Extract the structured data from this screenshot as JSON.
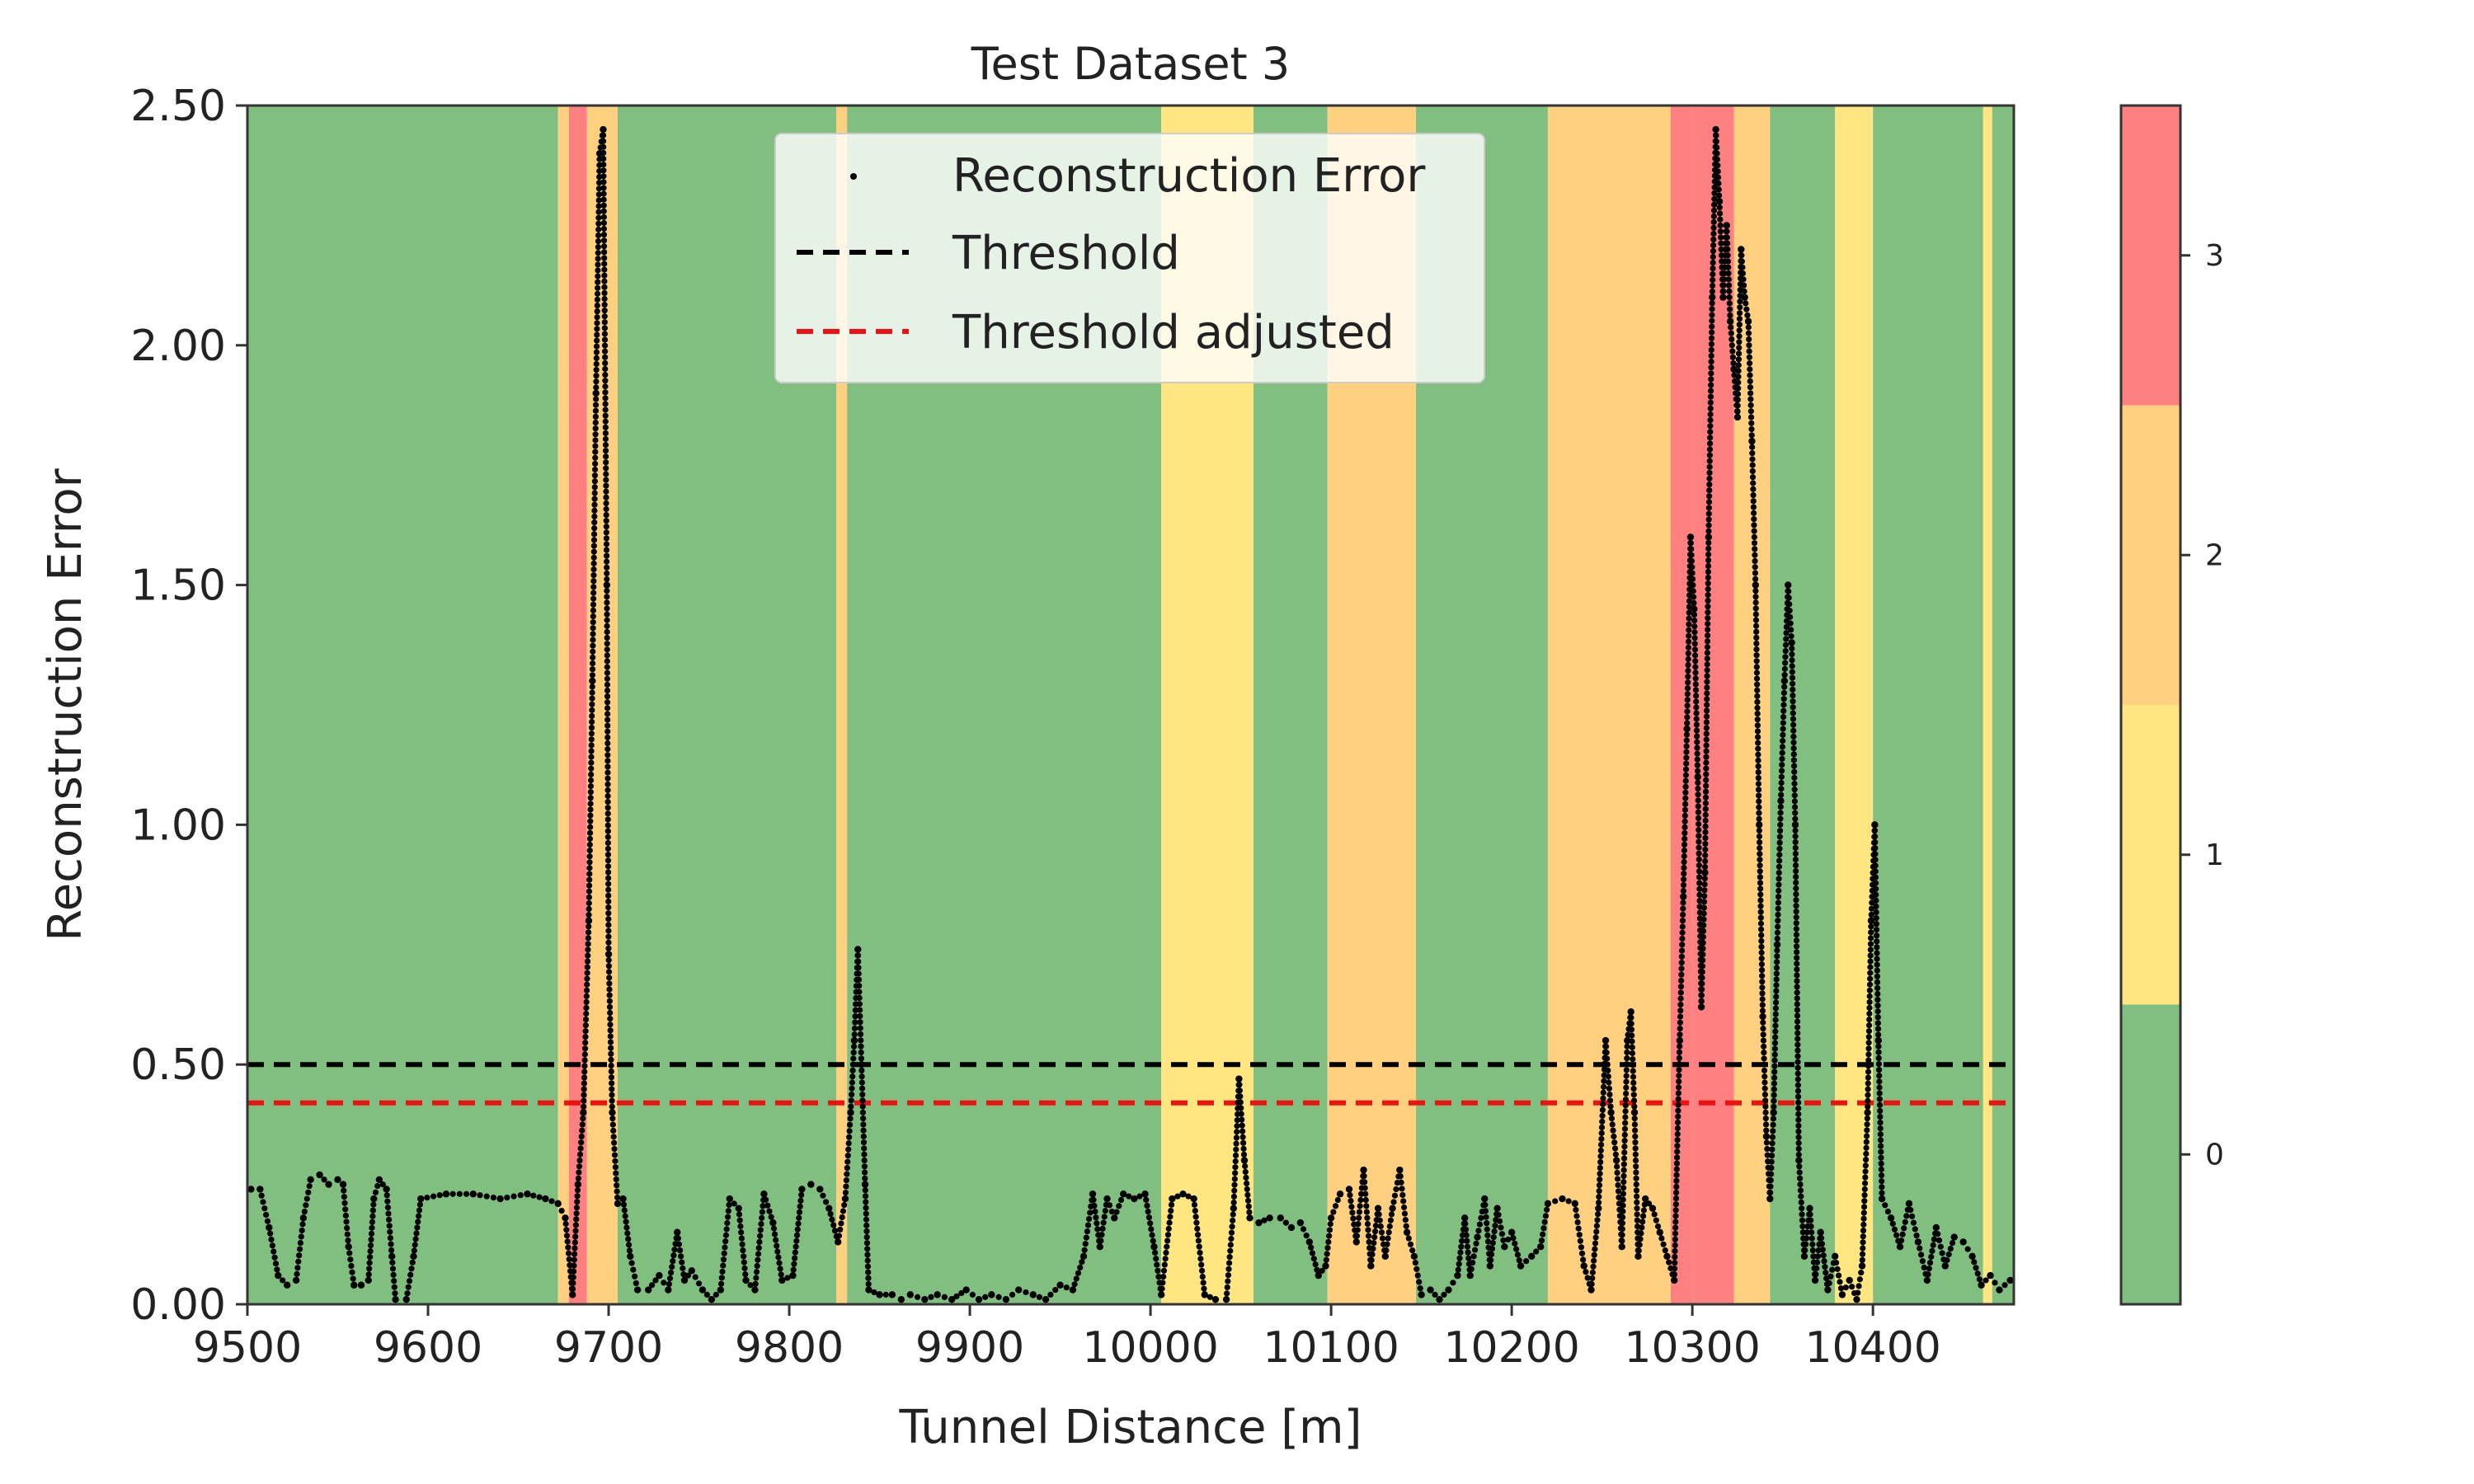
{
  "chart_data": {
    "type": "scatter",
    "title": "Test Dataset 3",
    "xlabel": "Tunnel Distance [m]",
    "ylabel": "Reconstruction Error",
    "xlim": [
      9500,
      10478
    ],
    "ylim": [
      0,
      2.5
    ],
    "x_ticks": [
      9500,
      9600,
      9700,
      9800,
      9900,
      10000,
      10100,
      10200,
      10300,
      10400
    ],
    "x_tick_labels": [
      "9500",
      "9600",
      "9700",
      "9800",
      "9900",
      "10000",
      "10100",
      "10200",
      "10300",
      "10400"
    ],
    "y_ticks": [
      0,
      0.5,
      1,
      1.5,
      2,
      2.5
    ],
    "y_tick_labels": [
      "0.00",
      "0.50",
      "1.00",
      "1.50",
      "2.00",
      "2.50"
    ],
    "grid": false,
    "legend_position": "top-center",
    "legend": [
      {
        "label": "Reconstruction Error",
        "kind": "marker",
        "color": "#000000"
      },
      {
        "label": "Threshold",
        "kind": "dashed-line",
        "color": "#000000"
      },
      {
        "label": "Threshold adjusted",
        "kind": "dashed-line",
        "color": "#ee1111"
      }
    ],
    "thresholds": [
      {
        "name": "Threshold",
        "value": 0.5,
        "color": "#000000"
      },
      {
        "name": "Threshold adjusted",
        "value": 0.42,
        "color": "#ee1111"
      }
    ],
    "class_colors": {
      "0": "#80bf80",
      "1": "#ffe680",
      "2": "#ffd080",
      "3": "#ff8080"
    },
    "class_bands": [
      {
        "from": 9500,
        "to": 9672,
        "class": 0
      },
      {
        "from": 9672,
        "to": 9678,
        "class": 2
      },
      {
        "from": 9678,
        "to": 9688,
        "class": 3
      },
      {
        "from": 9688,
        "to": 9705,
        "class": 2
      },
      {
        "from": 9705,
        "to": 9826,
        "class": 0
      },
      {
        "from": 9826,
        "to": 9832,
        "class": 2
      },
      {
        "from": 9832,
        "to": 10006,
        "class": 0
      },
      {
        "from": 10006,
        "to": 10057,
        "class": 1
      },
      {
        "from": 10057,
        "to": 10098,
        "class": 0
      },
      {
        "from": 10098,
        "to": 10147,
        "class": 2
      },
      {
        "from": 10147,
        "to": 10220,
        "class": 0
      },
      {
        "from": 10220,
        "to": 10288,
        "class": 2
      },
      {
        "from": 10288,
        "to": 10300,
        "class": 3
      },
      {
        "from": 10300,
        "to": 10323,
        "class": 3
      },
      {
        "from": 10323,
        "to": 10343,
        "class": 2
      },
      {
        "from": 10343,
        "to": 10379,
        "class": 0
      },
      {
        "from": 10379,
        "to": 10400,
        "class": 1
      },
      {
        "from": 10400,
        "to": 10461,
        "class": 0
      },
      {
        "from": 10461,
        "to": 10466,
        "class": 1
      },
      {
        "from": 10466,
        "to": 10478,
        "class": 0
      }
    ],
    "colorbar": {
      "ticks": [
        0,
        1,
        2,
        3
      ],
      "tick_labels": [
        "0",
        "1",
        "2",
        "3"
      ],
      "range": [
        -0.5,
        3.5
      ]
    },
    "series": [
      {
        "name": "Reconstruction Error",
        "points": [
          [
            9502,
            0.24
          ],
          [
            9507,
            0.24
          ],
          [
            9512,
            0.16
          ],
          [
            9517,
            0.06
          ],
          [
            9522,
            0.04
          ],
          [
            9527,
            0.05
          ],
          [
            9531,
            0.18
          ],
          [
            9535,
            0.26
          ],
          [
            9540,
            0.27
          ],
          [
            9545,
            0.25
          ],
          [
            9550,
            0.26
          ],
          [
            9553,
            0.25
          ],
          [
            9556,
            0.12
          ],
          [
            9559,
            0.04
          ],
          [
            9563,
            0.04
          ],
          [
            9567,
            0.05
          ],
          [
            9570,
            0.22
          ],
          [
            9573,
            0.26
          ],
          [
            9577,
            0.24
          ],
          [
            9580,
            0.1
          ],
          [
            9582,
            0.01
          ],
          [
            9588,
            0.01
          ],
          [
            9592,
            0.1
          ],
          [
            9596,
            0.22
          ],
          [
            9610,
            0.23
          ],
          [
            9625,
            0.23
          ],
          [
            9640,
            0.22
          ],
          [
            9655,
            0.23
          ],
          [
            9665,
            0.22
          ],
          [
            9672,
            0.21
          ],
          [
            9676,
            0.18
          ],
          [
            9680,
            0.02
          ],
          [
            9683,
            0.25
          ],
          [
            9686,
            0.4
          ],
          [
            9689,
            0.8
          ],
          [
            9691,
            1.3
          ],
          [
            9693,
            1.9
          ],
          [
            9695,
            2.4
          ],
          [
            9697,
            2.45
          ],
          [
            9699,
            1.5
          ],
          [
            9700,
            0.73
          ],
          [
            9702,
            0.4
          ],
          [
            9705,
            0.21
          ],
          [
            9708,
            0.22
          ],
          [
            9712,
            0.1
          ],
          [
            9716,
            0.03
          ],
          [
            9722,
            0.03
          ],
          [
            9728,
            0.06
          ],
          [
            9733,
            0.03
          ],
          [
            9738,
            0.15
          ],
          [
            9742,
            0.05
          ],
          [
            9746,
            0.07
          ],
          [
            9752,
            0.03
          ],
          [
            9757,
            0.01
          ],
          [
            9762,
            0.03
          ],
          [
            9767,
            0.22
          ],
          [
            9772,
            0.2
          ],
          [
            9776,
            0.05
          ],
          [
            9781,
            0.03
          ],
          [
            9786,
            0.23
          ],
          [
            9791,
            0.17
          ],
          [
            9796,
            0.05
          ],
          [
            9802,
            0.06
          ],
          [
            9807,
            0.24
          ],
          [
            9812,
            0.25
          ],
          [
            9817,
            0.24
          ],
          [
            9822,
            0.2
          ],
          [
            9827,
            0.13
          ],
          [
            9831,
            0.22
          ],
          [
            9834,
            0.4
          ],
          [
            9836,
            0.55
          ],
          [
            9838,
            0.74
          ],
          [
            9840,
            0.5
          ],
          [
            9842,
            0.25
          ],
          [
            9844,
            0.03
          ],
          [
            9850,
            0.02
          ],
          [
            9857,
            0.02
          ],
          [
            9862,
            0.01
          ],
          [
            9867,
            0.02
          ],
          [
            9875,
            0.01
          ],
          [
            9882,
            0.02
          ],
          [
            9890,
            0.01
          ],
          [
            9898,
            0.03
          ],
          [
            9905,
            0.01
          ],
          [
            9912,
            0.02
          ],
          [
            9920,
            0.01
          ],
          [
            9927,
            0.03
          ],
          [
            9935,
            0.02
          ],
          [
            9942,
            0.01
          ],
          [
            9950,
            0.04
          ],
          [
            9957,
            0.03
          ],
          [
            9963,
            0.1
          ],
          [
            9968,
            0.23
          ],
          [
            9972,
            0.12
          ],
          [
            9976,
            0.22
          ],
          [
            9980,
            0.18
          ],
          [
            9985,
            0.23
          ],
          [
            9991,
            0.22
          ],
          [
            9997,
            0.23
          ],
          [
            10002,
            0.12
          ],
          [
            10006,
            0.02
          ],
          [
            10012,
            0.22
          ],
          [
            10018,
            0.23
          ],
          [
            10024,
            0.22
          ],
          [
            10030,
            0.02
          ],
          [
            10036,
            0.01
          ],
          [
            10042,
            0.01
          ],
          [
            10046,
            0.2
          ],
          [
            10049,
            0.47
          ],
          [
            10052,
            0.3
          ],
          [
            10055,
            0.18
          ],
          [
            10060,
            0.17
          ],
          [
            10066,
            0.18
          ],
          [
            10072,
            0.18
          ],
          [
            10078,
            0.16
          ],
          [
            10083,
            0.17
          ],
          [
            10088,
            0.13
          ],
          [
            10093,
            0.06
          ],
          [
            10097,
            0.08
          ],
          [
            10100,
            0.18
          ],
          [
            10105,
            0.23
          ],
          [
            10110,
            0.24
          ],
          [
            10114,
            0.13
          ],
          [
            10118,
            0.28
          ],
          [
            10122,
            0.08
          ],
          [
            10126,
            0.2
          ],
          [
            10130,
            0.1
          ],
          [
            10134,
            0.2
          ],
          [
            10138,
            0.28
          ],
          [
            10142,
            0.15
          ],
          [
            10146,
            0.1
          ],
          [
            10150,
            0.02
          ],
          [
            10155,
            0.03
          ],
          [
            10160,
            0.01
          ],
          [
            10165,
            0.03
          ],
          [
            10170,
            0.06
          ],
          [
            10174,
            0.18
          ],
          [
            10177,
            0.06
          ],
          [
            10181,
            0.14
          ],
          [
            10185,
            0.22
          ],
          [
            10188,
            0.08
          ],
          [
            10192,
            0.2
          ],
          [
            10196,
            0.12
          ],
          [
            10200,
            0.15
          ],
          [
            10205,
            0.08
          ],
          [
            10211,
            0.1
          ],
          [
            10216,
            0.12
          ],
          [
            10220,
            0.21
          ],
          [
            10228,
            0.22
          ],
          [
            10235,
            0.21
          ],
          [
            10240,
            0.08
          ],
          [
            10244,
            0.03
          ],
          [
            10248,
            0.2
          ],
          [
            10252,
            0.55
          ],
          [
            10255,
            0.4
          ],
          [
            10258,
            0.3
          ],
          [
            10261,
            0.12
          ],
          [
            10264,
            0.55
          ],
          [
            10266,
            0.61
          ],
          [
            10268,
            0.4
          ],
          [
            10270,
            0.1
          ],
          [
            10274,
            0.22
          ],
          [
            10278,
            0.2
          ],
          [
            10282,
            0.15
          ],
          [
            10286,
            0.1
          ],
          [
            10290,
            0.05
          ],
          [
            10293,
            0.55
          ],
          [
            10295,
            0.85
          ],
          [
            10297,
            1.2
          ],
          [
            10299,
            1.6
          ],
          [
            10301,
            1.45
          ],
          [
            10303,
            1.1
          ],
          [
            10305,
            0.62
          ],
          [
            10307,
            0.9
          ],
          [
            10309,
            1.6
          ],
          [
            10311,
            2.1
          ],
          [
            10313,
            2.45
          ],
          [
            10315,
            2.3
          ],
          [
            10317,
            2.1
          ],
          [
            10319,
            2.25
          ],
          [
            10321,
            2.05
          ],
          [
            10323,
            1.95
          ],
          [
            10325,
            1.85
          ],
          [
            10327,
            2.2
          ],
          [
            10329,
            2.1
          ],
          [
            10331,
            2.05
          ],
          [
            10333,
            1.8
          ],
          [
            10335,
            1.5
          ],
          [
            10337,
            1.0
          ],
          [
            10339,
            0.6
          ],
          [
            10341,
            0.35
          ],
          [
            10343,
            0.22
          ],
          [
            10345,
            0.4
          ],
          [
            10347,
            0.75
          ],
          [
            10349,
            1.05
          ],
          [
            10351,
            1.3
          ],
          [
            10353,
            1.5
          ],
          [
            10355,
            1.38
          ],
          [
            10357,
            1.0
          ],
          [
            10359,
            0.3
          ],
          [
            10362,
            0.1
          ],
          [
            10365,
            0.2
          ],
          [
            10368,
            0.05
          ],
          [
            10371,
            0.15
          ],
          [
            10375,
            0.03
          ],
          [
            10379,
            0.1
          ],
          [
            10383,
            0.02
          ],
          [
            10387,
            0.05
          ],
          [
            10391,
            0.01
          ],
          [
            10394,
            0.08
          ],
          [
            10397,
            0.4
          ],
          [
            10399,
            0.8
          ],
          [
            10401,
            1.0
          ],
          [
            10403,
            0.55
          ],
          [
            10405,
            0.22
          ],
          [
            10410,
            0.18
          ],
          [
            10415,
            0.12
          ],
          [
            10420,
            0.21
          ],
          [
            10425,
            0.13
          ],
          [
            10430,
            0.05
          ],
          [
            10435,
            0.16
          ],
          [
            10440,
            0.08
          ],
          [
            10445,
            0.14
          ],
          [
            10450,
            0.13
          ],
          [
            10455,
            0.1
          ],
          [
            10460,
            0.04
          ],
          [
            10465,
            0.06
          ],
          [
            10470,
            0.03
          ],
          [
            10476,
            0.05
          ]
        ]
      }
    ]
  }
}
